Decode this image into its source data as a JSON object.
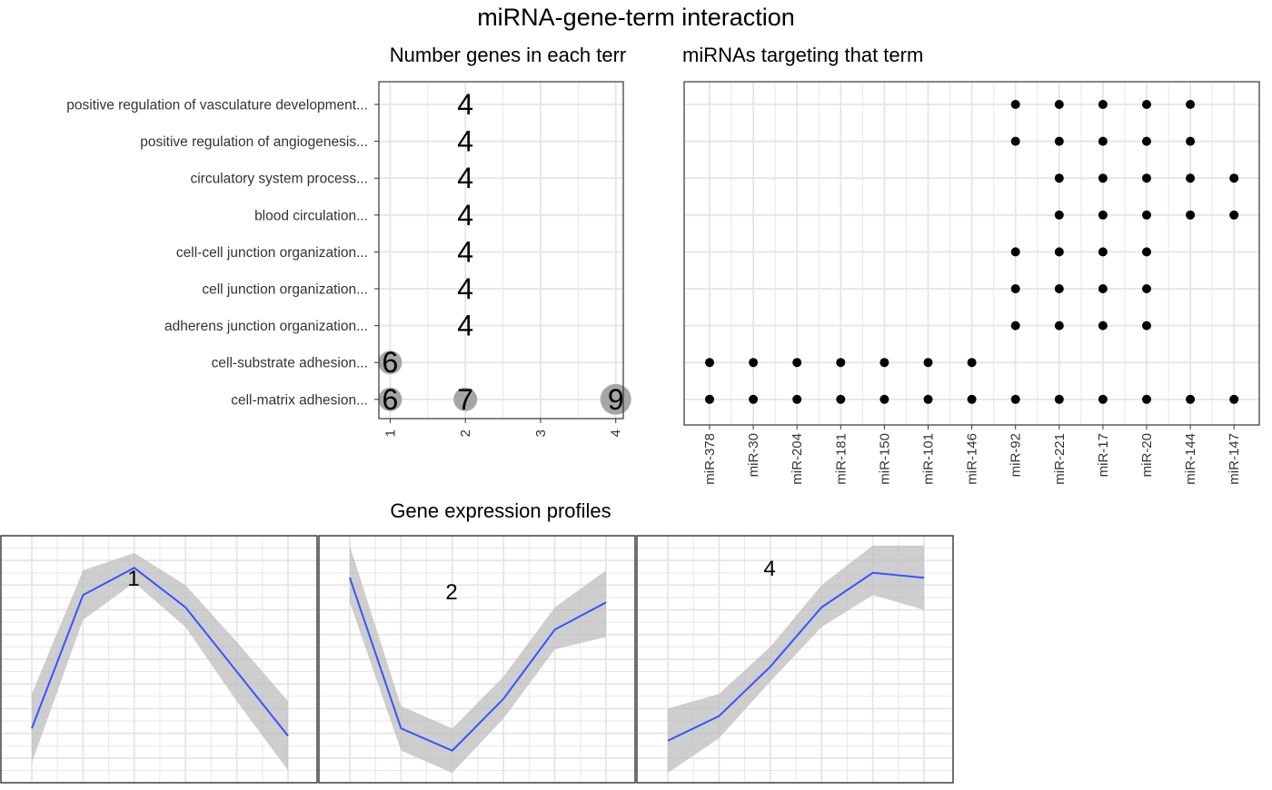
{
  "title": "miRNA-gene-term interaction",
  "chart_data": [
    {
      "type": "scatter",
      "title": "Number genes in each terr",
      "terms": [
        "positive regulation of vasculature development...",
        "positive regulation of angiogenesis...",
        "circulatory system process...",
        "blood circulation...",
        "cell-cell junction organization...",
        "cell junction organization...",
        "adherens junction organization...",
        "cell-substrate adhesion...",
        "cell-matrix adhesion..."
      ],
      "xticks": [
        "1",
        "2",
        "3",
        "4"
      ],
      "xlim": [
        0.85,
        4.1
      ],
      "points": [
        {
          "term": 0,
          "cluster": 2,
          "count": 4
        },
        {
          "term": 1,
          "cluster": 2,
          "count": 4
        },
        {
          "term": 2,
          "cluster": 2,
          "count": 4
        },
        {
          "term": 3,
          "cluster": 2,
          "count": 4
        },
        {
          "term": 4,
          "cluster": 2,
          "count": 4
        },
        {
          "term": 5,
          "cluster": 2,
          "count": 4
        },
        {
          "term": 6,
          "cluster": 2,
          "count": 4
        },
        {
          "term": 7,
          "cluster": 1,
          "count": 6
        },
        {
          "term": 8,
          "cluster": 1,
          "count": 6
        },
        {
          "term": 8,
          "cluster": 2,
          "count": 7
        },
        {
          "term": 8,
          "cluster": 4,
          "count": 9
        }
      ]
    },
    {
      "type": "scatter",
      "title": "miRNAs targeting that term",
      "mirnas": [
        "miR-378",
        "miR-30",
        "miR-204",
        "miR-181",
        "miR-150",
        "miR-101",
        "miR-146",
        "miR-92",
        "miR-221",
        "miR-17",
        "miR-20",
        "miR-144",
        "miR-147"
      ],
      "dots": [
        [
          0,
          7
        ],
        [
          0,
          8
        ],
        [
          0,
          9
        ],
        [
          0,
          10
        ],
        [
          0,
          11
        ],
        [
          1,
          7
        ],
        [
          1,
          8
        ],
        [
          1,
          9
        ],
        [
          1,
          10
        ],
        [
          1,
          11
        ],
        [
          2,
          8
        ],
        [
          2,
          9
        ],
        [
          2,
          10
        ],
        [
          2,
          11
        ],
        [
          2,
          12
        ],
        [
          3,
          8
        ],
        [
          3,
          9
        ],
        [
          3,
          10
        ],
        [
          3,
          11
        ],
        [
          3,
          12
        ],
        [
          4,
          7
        ],
        [
          4,
          8
        ],
        [
          4,
          9
        ],
        [
          4,
          10
        ],
        [
          5,
          7
        ],
        [
          5,
          8
        ],
        [
          5,
          9
        ],
        [
          5,
          10
        ],
        [
          6,
          7
        ],
        [
          6,
          8
        ],
        [
          6,
          9
        ],
        [
          6,
          10
        ],
        [
          7,
          0
        ],
        [
          7,
          1
        ],
        [
          7,
          2
        ],
        [
          7,
          3
        ],
        [
          7,
          4
        ],
        [
          7,
          5
        ],
        [
          7,
          6
        ],
        [
          8,
          0
        ],
        [
          8,
          1
        ],
        [
          8,
          2
        ],
        [
          8,
          3
        ],
        [
          8,
          4
        ],
        [
          8,
          5
        ],
        [
          8,
          6
        ],
        [
          8,
          7
        ],
        [
          8,
          8
        ],
        [
          8,
          9
        ],
        [
          8,
          10
        ],
        [
          8,
          11
        ],
        [
          8,
          12
        ]
      ]
    },
    {
      "type": "line",
      "title": "Gene expression profiles",
      "panels": [
        {
          "label": "1",
          "x": [
            1,
            2,
            3,
            4,
            5,
            6
          ],
          "mean": [
            0.22,
            0.76,
            0.87,
            0.71,
            0.45,
            0.19
          ],
          "lower": [
            0.08,
            0.66,
            0.81,
            0.63,
            0.33,
            0.05
          ],
          "upper": [
            0.36,
            0.86,
            0.93,
            0.8,
            0.57,
            0.33
          ]
        },
        {
          "label": "2",
          "x": [
            1,
            2,
            3,
            4,
            5,
            6
          ],
          "mean": [
            0.83,
            0.22,
            0.13,
            0.34,
            0.62,
            0.73
          ],
          "lower": [
            0.73,
            0.13,
            0.04,
            0.26,
            0.54,
            0.59
          ],
          "upper": [
            0.96,
            0.31,
            0.22,
            0.43,
            0.71,
            0.86
          ]
        },
        {
          "label": "4",
          "x": [
            1,
            2,
            3,
            4,
            5,
            6
          ],
          "mean": [
            0.17,
            0.27,
            0.47,
            0.71,
            0.85,
            0.83
          ],
          "lower": [
            0.04,
            0.18,
            0.41,
            0.63,
            0.76,
            0.7
          ],
          "upper": [
            0.3,
            0.36,
            0.55,
            0.8,
            0.96,
            0.96
          ]
        }
      ]
    }
  ],
  "colors": {
    "line": "#3355ff",
    "ribbon": "#bdbdbd",
    "grid": "#e5e5e5",
    "border": "#333333",
    "bubble": "#a6a6a6",
    "dot": "#000000"
  }
}
